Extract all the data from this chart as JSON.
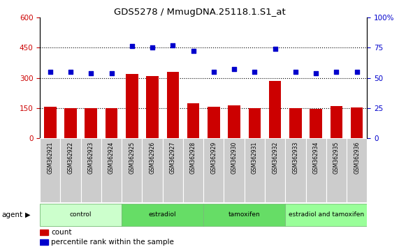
{
  "title": "GDS5278 / MmugDNA.25118.1.S1_at",
  "samples": [
    "GSM362921",
    "GSM362922",
    "GSM362923",
    "GSM362924",
    "GSM362925",
    "GSM362926",
    "GSM362927",
    "GSM362928",
    "GSM362929",
    "GSM362930",
    "GSM362931",
    "GSM362932",
    "GSM362933",
    "GSM362934",
    "GSM362935",
    "GSM362936"
  ],
  "counts": [
    158,
    150,
    148,
    148,
    318,
    308,
    328,
    175,
    155,
    163,
    150,
    283,
    150,
    145,
    160,
    152
  ],
  "percentile_ranks": [
    55,
    55,
    54,
    54,
    76,
    75,
    77,
    72,
    55,
    57,
    55,
    74,
    55,
    54,
    55,
    55
  ],
  "groups": [
    {
      "label": "control",
      "start": 0,
      "end": 4
    },
    {
      "label": "estradiol",
      "start": 4,
      "end": 8
    },
    {
      "label": "tamoxifen",
      "start": 8,
      "end": 12
    },
    {
      "label": "estradiol and tamoxifen",
      "start": 12,
      "end": 16
    }
  ],
  "group_colors": [
    "#ccffcc",
    "#66dd66",
    "#66dd66",
    "#99ff99"
  ],
  "group_border_color": "#77bb77",
  "bar_color": "#cc0000",
  "dot_color": "#0000cc",
  "ylim_left": [
    0,
    600
  ],
  "ylim_right": [
    0,
    100
  ],
  "yticks_left": [
    0,
    150,
    300,
    450,
    600
  ],
  "yticks_right": [
    0,
    25,
    50,
    75,
    100
  ],
  "ylabel_left_color": "#cc0000",
  "ylabel_right_color": "#0000cc",
  "agent_label": "agent",
  "legend_count_label": "count",
  "legend_pct_label": "percentile rank within the sample",
  "sample_bg_color": "#cccccc",
  "hgrid_vals": [
    150,
    300,
    450
  ],
  "bar_width": 0.6
}
